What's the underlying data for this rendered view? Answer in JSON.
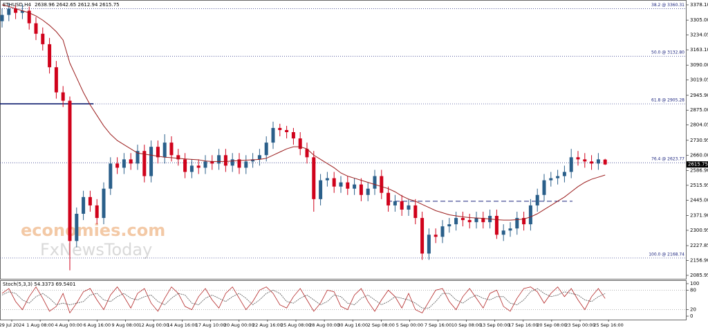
{
  "chart_data": {
    "type": "candlestick",
    "symbol": "ETHUSD,H4",
    "watermark": [
      "economies.com",
      "FxNewsToday"
    ],
    "up_color": "#2a5f8a",
    "down_color": "#d0021b",
    "ma_color": "#9b1c1c",
    "ylim": [
      2069.4,
      3401.2
    ],
    "yticks": [
      {
        "value": 3378.1,
        "label": "3378.10"
      },
      {
        "value": 3305,
        "label": "3305.00"
      },
      {
        "value": 3234.05,
        "label": "3234.05"
      },
      {
        "value": 3163.1,
        "label": "3163.10"
      },
      {
        "value": 3090,
        "label": "3090.00"
      },
      {
        "value": 3019.05,
        "label": "3019.05"
      },
      {
        "value": 2945.9,
        "label": "2945.90"
      },
      {
        "value": 2875,
        "label": "2875.00"
      },
      {
        "value": 2804.05,
        "label": "2804.05"
      },
      {
        "value": 2730.95,
        "label": "2730.95"
      },
      {
        "value": 2660,
        "label": "2660.00"
      },
      {
        "value": 2586.9,
        "label": "2586.90"
      },
      {
        "value": 2515.95,
        "label": "2515.95"
      },
      {
        "value": 2445,
        "label": "2445.00"
      },
      {
        "value": 2371.9,
        "label": "2371.90"
      },
      {
        "value": 2300.95,
        "label": "2300.95"
      },
      {
        "value": 2227.85,
        "label": "2227.85"
      },
      {
        "value": 2156.9,
        "label": "2156.90"
      },
      {
        "value": 2085.95,
        "label": "2085.95"
      }
    ],
    "levels": [
      {
        "value": 3360.31,
        "label": "38.2 @ 3360.31"
      },
      {
        "value": 3132.8,
        "label": "50.0 @ 3132.80"
      },
      {
        "value": 2905.28,
        "label": "61.8 @ 2905.28"
      },
      {
        "value": 2623.77,
        "label": "76.4 @ 2623.77"
      },
      {
        "value": 2168.74,
        "label": "100.0 @ 2168.74"
      }
    ],
    "neckline": 2440,
    "xlabels": [
      "29 Jul 2024",
      "1 Aug 08:00",
      "4 Aug 00:00",
      "6 Aug 16:00",
      "9 Aug 08:00",
      "12 Aug 00:00",
      "14 Aug 16:00",
      "17 Aug 10:00",
      "20 Aug 00:00",
      "22 Aug 16:00",
      "25 Aug 08:00",
      "28 Aug 00:00",
      "30 Aug 16:00",
      "2 Sep 08:00",
      "5 Sep 00:00",
      "7 Sep 16:00",
      "10 Sep 08:00",
      "13 Sep 00:00",
      "17 Sep 16:00",
      "20 Sep 08:00",
      "23 Sep 00:00",
      "25 Sep 16:00"
    ],
    "open": [
      3300,
      3330,
      3360,
      3340,
      3350,
      3290,
      3240,
      3190,
      3080,
      2960,
      2920,
      2250,
      2380,
      2460,
      2420,
      2360,
      2500,
      2620,
      2600,
      2640,
      2620,
      2680,
      2560,
      2700,
      2650,
      2720,
      2660,
      2640,
      2580,
      2610,
      2600,
      2630,
      2620,
      2660,
      2610,
      2640,
      2600,
      2630,
      2640,
      2660,
      2720,
      2790,
      2780,
      2770,
      2740,
      2690,
      2650,
      2450,
      2540,
      2550,
      2510,
      2530,
      2500,
      2520,
      2470,
      2500,
      2560,
      2480,
      2420,
      2440,
      2400,
      2420,
      2360,
      2190,
      2280,
      2270,
      2320,
      2330,
      2360,
      2350,
      2340,
      2360,
      2340,
      2370,
      2280,
      2300,
      2310,
      2360,
      2330,
      2420,
      2470,
      2540,
      2550,
      2560,
      2580,
      2650,
      2640,
      2630,
      2620,
      2638.96
    ],
    "high": [
      3360,
      3385,
      3375,
      3380,
      3370,
      3320,
      3270,
      3220,
      3110,
      2990,
      2940,
      2410,
      2490,
      2490,
      2450,
      2530,
      2650,
      2650,
      2670,
      2670,
      2710,
      2710,
      2730,
      2730,
      2760,
      2750,
      2690,
      2670,
      2640,
      2640,
      2660,
      2660,
      2690,
      2690,
      2670,
      2670,
      2660,
      2670,
      2690,
      2750,
      2820,
      2810,
      2800,
      2790,
      2770,
      2720,
      2680,
      2570,
      2580,
      2580,
      2560,
      2560,
      2550,
      2550,
      2530,
      2590,
      2590,
      2510,
      2470,
      2470,
      2450,
      2450,
      2390,
      2310,
      2310,
      2350,
      2360,
      2390,
      2390,
      2380,
      2390,
      2390,
      2400,
      2400,
      2330,
      2340,
      2390,
      2390,
      2450,
      2500,
      2570,
      2580,
      2590,
      2610,
      2690,
      2680,
      2670,
      2660,
      2670,
      2642.65
    ],
    "low": [
      3270,
      3300,
      3310,
      3310,
      3260,
      3210,
      3160,
      3050,
      2930,
      2890,
      2110,
      2220,
      2350,
      2390,
      2330,
      2330,
      2470,
      2570,
      2570,
      2590,
      2590,
      2530,
      2530,
      2620,
      2620,
      2630,
      2610,
      2550,
      2550,
      2570,
      2570,
      2590,
      2590,
      2580,
      2580,
      2570,
      2570,
      2600,
      2610,
      2630,
      2690,
      2750,
      2740,
      2710,
      2660,
      2620,
      2390,
      2420,
      2510,
      2480,
      2480,
      2470,
      2470,
      2440,
      2440,
      2470,
      2450,
      2390,
      2390,
      2370,
      2370,
      2330,
      2160,
      2160,
      2240,
      2240,
      2290,
      2300,
      2320,
      2310,
      2310,
      2310,
      2310,
      2260,
      2250,
      2270,
      2280,
      2300,
      2300,
      2390,
      2440,
      2510,
      2520,
      2530,
      2550,
      2610,
      2600,
      2590,
      2590,
      2612.94
    ],
    "close": [
      3330,
      3360,
      3340,
      3350,
      3290,
      3240,
      3190,
      3080,
      2960,
      2920,
      2250,
      2380,
      2460,
      2420,
      2360,
      2500,
      2620,
      2600,
      2640,
      2620,
      2680,
      2560,
      2700,
      2650,
      2720,
      2660,
      2640,
      2580,
      2610,
      2600,
      2630,
      2620,
      2660,
      2610,
      2640,
      2600,
      2630,
      2640,
      2660,
      2720,
      2790,
      2780,
      2770,
      2740,
      2690,
      2650,
      2450,
      2540,
      2550,
      2510,
      2530,
      2500,
      2520,
      2470,
      2500,
      2560,
      2480,
      2420,
      2440,
      2400,
      2420,
      2360,
      2190,
      2280,
      2270,
      2320,
      2330,
      2360,
      2350,
      2340,
      2360,
      2340,
      2370,
      2280,
      2300,
      2310,
      2360,
      2330,
      2420,
      2470,
      2540,
      2550,
      2560,
      2580,
      2650,
      2640,
      2630,
      2620,
      2640,
      2615.75
    ],
    "ma": [
      3378,
      3370,
      3360,
      3350,
      3340,
      3325,
      3305,
      3280,
      3250,
      3210,
      3100,
      3030,
      2960,
      2900,
      2850,
      2800,
      2760,
      2730,
      2710,
      2690,
      2670,
      2665,
      2660,
      2655,
      2650,
      2648,
      2645,
      2642,
      2640,
      2638,
      2632,
      2630,
      2630,
      2630,
      2632,
      2634,
      2636,
      2638,
      2640,
      2645,
      2660,
      2675,
      2690,
      2700,
      2700,
      2690,
      2660,
      2640,
      2620,
      2600,
      2575,
      2560,
      2550,
      2540,
      2530,
      2520,
      2510,
      2500,
      2485,
      2465,
      2450,
      2440,
      2425,
      2410,
      2395,
      2385,
      2375,
      2370,
      2365,
      2362,
      2360,
      2358,
      2355,
      2352,
      2350,
      2350,
      2352,
      2355,
      2365,
      2380,
      2400,
      2420,
      2440,
      2460,
      2485,
      2510,
      2530,
      2545,
      2555,
      2565
    ],
    "stoch": {
      "name": "Stoch(5,3,3)",
      "ylim": [
        0,
        100
      ],
      "yticks": [
        100,
        80,
        20,
        0
      ],
      "levels": [
        80,
        20
      ],
      "series": [
        {
          "name": "main",
          "color": "#b22222",
          "values": [
            70,
            85,
            45,
            20,
            60,
            90,
            55,
            15,
            30,
            70,
            10,
            40,
            75,
            85,
            50,
            20,
            65,
            90,
            60,
            25,
            70,
            85,
            40,
            15,
            55,
            90,
            70,
            30,
            20,
            60,
            85,
            50,
            25,
            70,
            90,
            55,
            20,
            45,
            80,
            90,
            70,
            35,
            25,
            60,
            85,
            50,
            15,
            40,
            80,
            75,
            30,
            20,
            65,
            85,
            45,
            15,
            50,
            80,
            60,
            25,
            70,
            20,
            10,
            45,
            80,
            85,
            45,
            20,
            60,
            85,
            55,
            25,
            70,
            80,
            30,
            15,
            55,
            85,
            90,
            75,
            40,
            70,
            90,
            60,
            85,
            50,
            20,
            60,
            85,
            54.3373
          ]
        },
        {
          "name": "signal",
          "color": "#555555",
          "values": [
            65,
            75,
            70,
            50,
            40,
            60,
            70,
            55,
            35,
            40,
            35,
            40,
            45,
            65,
            70,
            50,
            45,
            60,
            70,
            55,
            50,
            60,
            65,
            45,
            35,
            55,
            70,
            65,
            40,
            35,
            55,
            65,
            55,
            45,
            60,
            70,
            55,
            35,
            50,
            70,
            80,
            70,
            45,
            40,
            55,
            65,
            50,
            35,
            45,
            65,
            60,
            40,
            35,
            55,
            65,
            50,
            35,
            45,
            60,
            55,
            50,
            40,
            25,
            25,
            45,
            70,
            70,
            50,
            40,
            55,
            65,
            55,
            50,
            60,
            60,
            40,
            35,
            50,
            75,
            85,
            70,
            60,
            65,
            75,
            70,
            65,
            50,
            45,
            60,
            69.5401
          ]
        }
      ]
    }
  }
}
